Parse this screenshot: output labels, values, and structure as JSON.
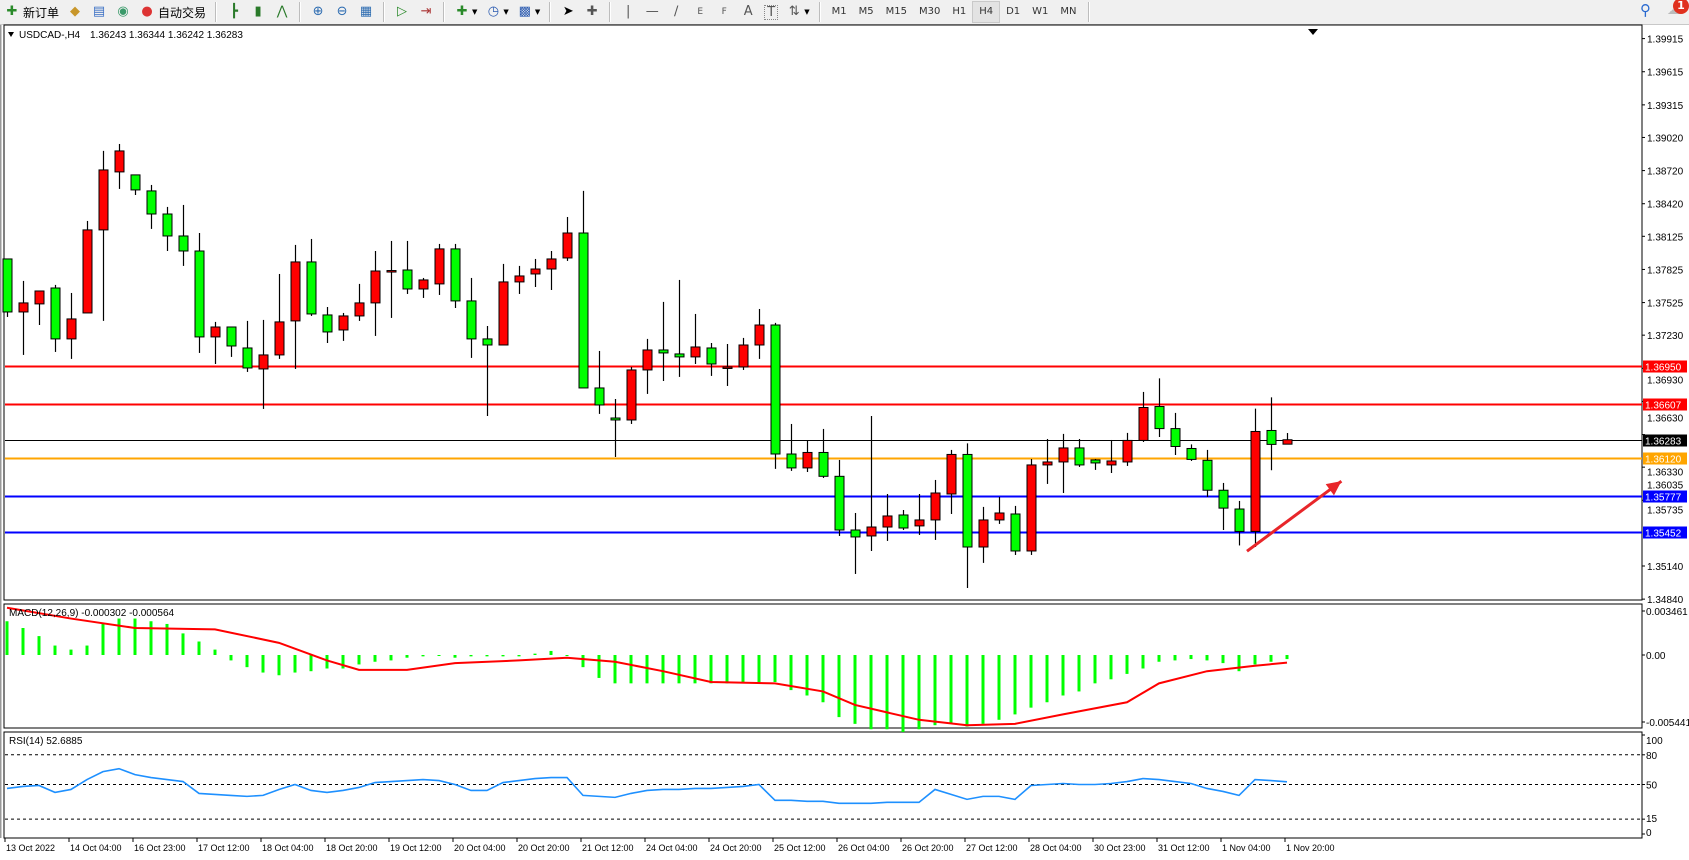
{
  "toolbar": {
    "new_order_label": "新订单",
    "auto_trading_label": "自动交易",
    "icons": [
      "new-order-icon",
      "gold-icon",
      "market-watch-icon",
      "signal-icon",
      "auto-trading-icon",
      "bar-chart-icon",
      "candlestick-icon",
      "line-chart-icon",
      "zoom-in-icon",
      "zoom-out-icon",
      "tile-windows-icon",
      "auto-scroll-icon",
      "chart-shift-icon",
      "indicators-icon",
      "periods-icon",
      "templates-icon",
      "cursor-icon",
      "crosshair-icon",
      "vertical-line-icon",
      "horizontal-line-icon",
      "trendline-icon",
      "fibo-channel-icon",
      "fibo-icon",
      "text-icon",
      "text-label-icon",
      "arrows-icon"
    ],
    "fibo_channel_letter": "E",
    "fibo_letter": "F",
    "text_tool_letter": "A",
    "label_tool_letter": "T",
    "periods": [
      "M1",
      "M5",
      "M15",
      "M30",
      "H1",
      "H4",
      "D1",
      "W1",
      "MN"
    ],
    "active_period": "H4",
    "notification_count": "1"
  },
  "chart": {
    "symbol_label": "USDCAD-,H4",
    "ohlc_label": "1.36243 1.36344 1.36242 1.36283",
    "colors": {
      "bull": "#ff0000",
      "bear": "#00ff00",
      "wick": "#000000",
      "rsi": "#1e90ff",
      "macd_hist": "#00ff00",
      "macd_signal": "#ff0000",
      "arrow": "#e8262a"
    },
    "price_axis": [
      "1.39915",
      "1.39615",
      "1.39315",
      "1.39020",
      "1.38720",
      "1.38420",
      "1.38125",
      "1.37825",
      "1.37525",
      "1.37230",
      "1.36930",
      "1.36630",
      "1.36330",
      "1.36035",
      "1.35735",
      "1.35140",
      "1.34840"
    ],
    "price_range": [
      1.3484,
      1.39915
    ],
    "levels": [
      {
        "price": "1.36950",
        "color": "#ff0000"
      },
      {
        "price": "1.36607",
        "color": "#ff0000"
      },
      {
        "price": "1.36283",
        "color": "#000000"
      },
      {
        "price": "1.36120",
        "color": "#ffa500"
      },
      {
        "price": "1.35777",
        "color": "#0000ff"
      },
      {
        "price": "1.35452",
        "color": "#0000ff"
      }
    ],
    "time_labels": [
      "13 Oct 2022",
      "14 Oct 04:00",
      "16 Oct 23:00",
      "17 Oct 12:00",
      "18 Oct 04:00",
      "18 Oct 20:00",
      "19 Oct 12:00",
      "20 Oct 04:00",
      "20 Oct 20:00",
      "21 Oct 12:00",
      "24 Oct 04:00",
      "24 Oct 20:00",
      "25 Oct 12:00",
      "26 Oct 04:00",
      "26 Oct 20:00",
      "27 Oct 12:00",
      "28 Oct 04:00",
      "30 Oct 23:00",
      "31 Oct 12:00",
      "1 Nov 04:00",
      "1 Nov 20:00"
    ],
    "candles_ohlc": [
      [
        1.3792,
        1.3792,
        1.37395,
        1.3744
      ],
      [
        1.3744,
        1.37721,
        1.37051,
        1.37522
      ],
      [
        1.37513,
        1.3763,
        1.37322,
        1.3763
      ],
      [
        1.37657,
        1.37685,
        1.37078,
        1.37196
      ],
      [
        1.37196,
        1.37612,
        1.37015,
        1.37377
      ],
      [
        1.37431,
        1.38264,
        1.37431,
        1.38183
      ],
      [
        1.38183,
        1.38898,
        1.37359,
        1.38726
      ],
      [
        1.38708,
        1.38961,
        1.38554,
        1.38898
      ],
      [
        1.38681,
        1.38681,
        1.38499,
        1.38545
      ],
      [
        1.38536,
        1.3859,
        1.38192,
        1.38327
      ],
      [
        1.38327,
        1.38391,
        1.37992,
        1.38128
      ],
      [
        1.38128,
        1.38409,
        1.37857,
        1.37992
      ],
      [
        1.37992,
        1.38155,
        1.37069,
        1.37214
      ],
      [
        1.37214,
        1.3735,
        1.36969,
        1.37304
      ],
      [
        1.37304,
        1.37304,
        1.37033,
        1.37132
      ],
      [
        1.37114,
        1.37359,
        1.36897,
        1.36933
      ],
      [
        1.36924,
        1.37368,
        1.36562,
        1.37051
      ],
      [
        1.37051,
        1.37784,
        1.37015,
        1.3735
      ],
      [
        1.37359,
        1.38047,
        1.36924,
        1.37893
      ],
      [
        1.37893,
        1.38101,
        1.37404,
        1.37422
      ],
      [
        1.37413,
        1.37485,
        1.37159,
        1.37259
      ],
      [
        1.37277,
        1.37431,
        1.37178,
        1.37404
      ],
      [
        1.37404,
        1.37694,
        1.37359,
        1.37522
      ],
      [
        1.37522,
        1.37992,
        1.37223,
        1.37811
      ],
      [
        1.37811,
        1.38083,
        1.37386,
        1.37815
      ],
      [
        1.3782,
        1.38083,
        1.37603,
        1.37648
      ],
      [
        1.37648,
        1.37748,
        1.37567,
        1.3773
      ],
      [
        1.37694,
        1.38056,
        1.37594,
        1.38011
      ],
      [
        1.38011,
        1.38056,
        1.37476,
        1.3754
      ],
      [
        1.3754,
        1.37748,
        1.37024,
        1.37196
      ],
      [
        1.37196,
        1.37313,
        1.36498,
        1.37141
      ],
      [
        1.37141,
        1.37875,
        1.37141,
        1.37712
      ],
      [
        1.37712,
        1.37857,
        1.37603,
        1.37766
      ],
      [
        1.37784,
        1.3792,
        1.37666,
        1.37829
      ],
      [
        1.37829,
        1.37992,
        1.37639,
        1.3792
      ],
      [
        1.37929,
        1.383,
        1.37902,
        1.38155
      ],
      [
        1.38155,
        1.38536,
        1.36752,
        1.36752
      ],
      [
        1.36752,
        1.37087,
        1.36517,
        1.36598
      ],
      [
        1.3648,
        1.36652,
        1.36127,
        1.36462
      ],
      [
        1.36462,
        1.36942,
        1.36426,
        1.36915
      ],
      [
        1.36915,
        1.37196,
        1.36698,
        1.37096
      ],
      [
        1.37096,
        1.37531,
        1.36815,
        1.37069
      ],
      [
        1.3706,
        1.3773,
        1.36852,
        1.37033
      ],
      [
        1.37033,
        1.37422,
        1.36969,
        1.37123
      ],
      [
        1.37114,
        1.37159,
        1.36861,
        1.36969
      ],
      [
        1.36942,
        1.3715,
        1.3677,
        1.36942
      ],
      [
        1.36942,
        1.37205,
        1.36915,
        1.37141
      ],
      [
        1.37141,
        1.37467,
        1.37015,
        1.37322
      ],
      [
        1.37322,
        1.37341,
        1.36019,
        1.36154
      ],
      [
        1.36154,
        1.36426,
        1.36001,
        1.36028
      ],
      [
        1.36028,
        1.36272,
        1.35991,
        1.36168
      ],
      [
        1.36168,
        1.36381,
        1.35937,
        1.35952
      ],
      [
        1.35952,
        1.361,
        1.35412,
        1.35466
      ],
      [
        1.35466,
        1.3562,
        1.35068,
        1.35403
      ],
      [
        1.35412,
        1.36498,
        1.35276,
        1.35493
      ],
      [
        1.35493,
        1.35792,
        1.35367,
        1.35593
      ],
      [
        1.35602,
        1.35647,
        1.35466,
        1.35484
      ],
      [
        1.35503,
        1.35792,
        1.35421,
        1.35557
      ],
      [
        1.35557,
        1.35919,
        1.35376,
        1.35801
      ],
      [
        1.35792,
        1.36191,
        1.35611,
        1.3615
      ],
      [
        1.3615,
        1.3625,
        1.34941,
        1.35312
      ],
      [
        1.35312,
        1.35675,
        1.35168,
        1.35557
      ],
      [
        1.35557,
        1.35765,
        1.35521,
        1.3562
      ],
      [
        1.35611,
        1.35684,
        1.3524,
        1.35276
      ],
      [
        1.35276,
        1.36109,
        1.3524,
        1.36055
      ],
      [
        1.36055,
        1.3629,
        1.35883,
        1.36082
      ],
      [
        1.36082,
        1.36336,
        1.35801,
        1.36209
      ],
      [
        1.36209,
        1.3629,
        1.36037,
        1.36055
      ],
      [
        1.361,
        1.36109,
        1.3601,
        1.36073
      ],
      [
        1.36055,
        1.36281,
        1.35982,
        1.36091
      ],
      [
        1.36082,
        1.36345,
        1.36046,
        1.36277
      ],
      [
        1.36277,
        1.36716,
        1.36263,
        1.36575
      ],
      [
        1.36584,
        1.36839,
        1.36308,
        1.36384
      ],
      [
        1.36384,
        1.36526,
        1.36145,
        1.36222
      ],
      [
        1.36204,
        1.36241,
        1.36091,
        1.36105
      ],
      [
        1.36097,
        1.36191,
        1.35765,
        1.35826
      ],
      [
        1.35826,
        1.35892,
        1.35466,
        1.35664
      ],
      [
        1.35656,
        1.35729,
        1.35326,
        1.35453
      ],
      [
        1.35453,
        1.36565,
        1.35312,
        1.36358
      ],
      [
        1.36367,
        1.36667,
        1.36007,
        1.36241
      ],
      [
        1.36243,
        1.36344,
        1.36242,
        1.36283
      ]
    ],
    "arrow_annotation": {
      "from": [
        77.5,
        1.35274
      ],
      "to": [
        83.4,
        1.35908
      ]
    }
  },
  "macd": {
    "label": "MACD(12,26,9) -0.000302 -0.000564",
    "axis": [
      "0.003461",
      "0.00",
      "-0.005441"
    ],
    "histogram": [
      0.0025,
      0.002,
      0.0014,
      0.0007,
      0.0004,
      0.0007,
      0.0023,
      0.0027,
      0.0027,
      0.0025,
      0.0023,
      0.0016,
      0.001,
      0.0004,
      -0.0004,
      -0.0009,
      -0.0013,
      -0.0015,
      -0.0013,
      -0.0012,
      -0.001,
      -0.001,
      -0.0007,
      -0.0005,
      -0.0004,
      -0.0002,
      -0.0001,
      0.0,
      -0.0002,
      -0.0001,
      -0.0001,
      -0.0001,
      -0.0001,
      0.0001,
      0.0003,
      0.0,
      -0.0009,
      -0.0017,
      -0.0021,
      -0.0021,
      -0.0021,
      -0.0021,
      -0.0021,
      -0.0021,
      -0.0021,
      -0.0021,
      -0.0021,
      -0.0021,
      -0.002,
      -0.0026,
      -0.003,
      -0.0035,
      -0.0046,
      -0.0051,
      -0.0055,
      -0.0055,
      -0.0057,
      -0.0055,
      -0.0052,
      -0.005,
      -0.0053,
      -0.0051,
      -0.0048,
      -0.0044,
      -0.0039,
      -0.0035,
      -0.003,
      -0.0027,
      -0.0021,
      -0.0018,
      -0.0014,
      -0.001,
      -0.0005,
      -0.0004,
      -0.0003,
      -0.0004,
      -0.0006,
      -0.0012,
      -0.0007,
      -0.0005,
      -0.000302
    ],
    "signal_points": [
      [
        0,
        0.0035
      ],
      [
        4,
        0.0027
      ],
      [
        8,
        0.002
      ],
      [
        13,
        0.0019
      ],
      [
        17,
        0.0009
      ],
      [
        20,
        -0.0004
      ],
      [
        22,
        -0.0011
      ],
      [
        25,
        -0.0011
      ],
      [
        28,
        -0.0006
      ],
      [
        32,
        -0.0004
      ],
      [
        35,
        -0.0002
      ],
      [
        38,
        -0.0005
      ],
      [
        41,
        -0.0012
      ],
      [
        44,
        -0.002
      ],
      [
        48,
        -0.0021
      ],
      [
        51,
        -0.0027
      ],
      [
        53,
        -0.0037
      ],
      [
        57,
        -0.0048
      ],
      [
        60,
        -0.0052
      ],
      [
        63,
        -0.0051
      ],
      [
        66,
        -0.0044
      ],
      [
        70,
        -0.0035
      ],
      [
        72,
        -0.0021
      ],
      [
        75,
        -0.0012
      ],
      [
        78,
        -0.0008
      ],
      [
        80,
        -0.000564
      ]
    ]
  },
  "rsi": {
    "label": "RSI(14) 52.6885",
    "axis": [
      "100",
      "80",
      "50",
      "15",
      "0"
    ],
    "levels": [
      80,
      50,
      15
    ],
    "values": [
      46,
      48,
      49,
      42,
      45,
      55,
      63,
      66,
      60,
      57,
      55,
      53,
      41,
      40,
      39,
      38,
      39,
      45,
      50,
      44,
      42,
      44,
      47,
      52,
      53,
      54,
      55,
      54,
      50,
      44,
      44,
      52,
      54,
      56,
      57,
      57,
      39,
      38,
      37,
      41,
      44,
      45,
      45,
      46,
      46,
      47,
      48,
      50,
      34,
      34,
      33,
      33,
      31,
      31,
      31,
      32,
      32,
      32,
      45,
      40,
      35,
      38,
      38,
      35,
      49,
      50,
      51,
      50,
      50,
      51,
      53,
      56,
      55,
      53,
      51,
      46,
      43,
      39,
      55,
      54,
      52.6885
    ]
  }
}
